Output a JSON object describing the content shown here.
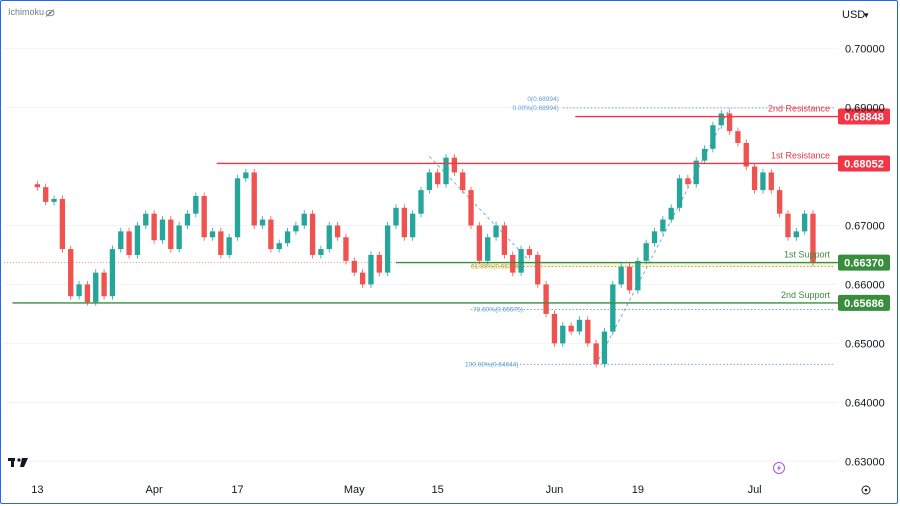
{
  "header": {
    "indicator_label": "Ichimoku",
    "currency_label": "USD",
    "currency_chevron": "▾"
  },
  "colors": {
    "up": "#26a69a",
    "down": "#ef5350",
    "resistance": "#f23645",
    "support": "#388e3c",
    "fib": "#5b9bd5",
    "fib_golden": "#c9a227",
    "axis_text": "#131722",
    "grid": "#f0f3fa"
  },
  "chart_data": {
    "type": "candlestick",
    "y_axis": {
      "ticks": [
        "0.70000",
        "0.69000",
        "0.67000",
        "0.66000",
        "0.65000",
        "0.64000",
        "0.63000"
      ],
      "tick_values": [
        0.7,
        0.69,
        0.67,
        0.66,
        0.65,
        0.64,
        0.63
      ],
      "ylim": [
        0.6275,
        0.7035
      ]
    },
    "x_axis": {
      "ticks": [
        "13",
        "Apr",
        "17",
        "May",
        "15",
        "Jun",
        "19",
        "Jul"
      ],
      "day_index": [
        0,
        14,
        24,
        38,
        48,
        62,
        72,
        86
      ],
      "xlim": [
        -4,
        96
      ]
    },
    "levels": [
      {
        "name": "2nd Resistance",
        "value": "0.68848",
        "price": 0.68848,
        "kind": "resistance",
        "start_day": 64.5
      },
      {
        "name": "1st Resistance",
        "value": "0.68052",
        "price": 0.68052,
        "kind": "resistance",
        "start_day": 21.5
      },
      {
        "name": "1st Support",
        "value": "0.66370",
        "price": 0.6637,
        "kind": "support",
        "start_day": 43.0
      },
      {
        "name": "2nd Support",
        "value": "0.65686",
        "price": 0.65686,
        "kind": "support",
        "start_day": -3.0
      }
    ],
    "fib_levels": [
      {
        "label": "0(0.68994)",
        "price": 0.68994
      },
      {
        "label": "0.00%(0.68994)",
        "price": 0.68994
      },
      {
        "label": "61.80%(0.66336)",
        "price": 0.66336
      },
      {
        "label": "78.60%(0.65575)",
        "price": 0.65575
      },
      {
        "label": "100.00%(0.64644)",
        "price": 0.64644
      }
    ],
    "last_price": 0.6637,
    "candles": [
      [
        0.677,
        0.6765
      ],
      [
        0.6765,
        0.674
      ],
      [
        0.674,
        0.6745
      ],
      [
        0.6745,
        0.666
      ],
      [
        0.666,
        0.658
      ],
      [
        0.658,
        0.66
      ],
      [
        0.66,
        0.657
      ],
      [
        0.657,
        0.662
      ],
      [
        0.662,
        0.658
      ],
      [
        0.658,
        0.666
      ],
      [
        0.666,
        0.669
      ],
      [
        0.669,
        0.665
      ],
      [
        0.665,
        0.67
      ],
      [
        0.67,
        0.672
      ],
      [
        0.672,
        0.6675
      ],
      [
        0.6675,
        0.671
      ],
      [
        0.671,
        0.666
      ],
      [
        0.666,
        0.67
      ],
      [
        0.67,
        0.672
      ],
      [
        0.672,
        0.675
      ],
      [
        0.675,
        0.668
      ],
      [
        0.668,
        0.669
      ],
      [
        0.669,
        0.665
      ],
      [
        0.665,
        0.668
      ],
      [
        0.668,
        0.678
      ],
      [
        0.678,
        0.679
      ],
      [
        0.679,
        0.67
      ],
      [
        0.67,
        0.671
      ],
      [
        0.671,
        0.666
      ],
      [
        0.666,
        0.667
      ],
      [
        0.667,
        0.669
      ],
      [
        0.669,
        0.67
      ],
      [
        0.67,
        0.672
      ],
      [
        0.672,
        0.665
      ],
      [
        0.665,
        0.666
      ],
      [
        0.666,
        0.67
      ],
      [
        0.67,
        0.668
      ],
      [
        0.668,
        0.664
      ],
      [
        0.664,
        0.662
      ],
      [
        0.662,
        0.66
      ],
      [
        0.66,
        0.665
      ],
      [
        0.665,
        0.662
      ],
      [
        0.662,
        0.67
      ],
      [
        0.67,
        0.673
      ],
      [
        0.673,
        0.668
      ],
      [
        0.668,
        0.672
      ],
      [
        0.672,
        0.676
      ],
      [
        0.676,
        0.679
      ],
      [
        0.679,
        0.677
      ],
      [
        0.677,
        0.6815
      ],
      [
        0.6815,
        0.679
      ],
      [
        0.679,
        0.676
      ],
      [
        0.676,
        0.67
      ],
      [
        0.67,
        0.664
      ],
      [
        0.664,
        0.668
      ],
      [
        0.668,
        0.67
      ],
      [
        0.67,
        0.665
      ],
      [
        0.665,
        0.662
      ],
      [
        0.662,
        0.666
      ],
      [
        0.666,
        0.665
      ],
      [
        0.665,
        0.66
      ],
      [
        0.66,
        0.655
      ],
      [
        0.655,
        0.65
      ],
      [
        0.65,
        0.653
      ],
      [
        0.653,
        0.652
      ],
      [
        0.652,
        0.654
      ],
      [
        0.654,
        0.65
      ],
      [
        0.65,
        0.6465
      ],
      [
        0.6465,
        0.652
      ],
      [
        0.652,
        0.66
      ],
      [
        0.66,
        0.663
      ],
      [
        0.663,
        0.659
      ],
      [
        0.659,
        0.664
      ],
      [
        0.664,
        0.667
      ],
      [
        0.667,
        0.669
      ],
      [
        0.669,
        0.671
      ],
      [
        0.671,
        0.673
      ],
      [
        0.673,
        0.678
      ],
      [
        0.678,
        0.677
      ],
      [
        0.677,
        0.681
      ],
      [
        0.681,
        0.683
      ],
      [
        0.683,
        0.687
      ],
      [
        0.687,
        0.689
      ],
      [
        0.689,
        0.686
      ],
      [
        0.686,
        0.684
      ],
      [
        0.684,
        0.68
      ],
      [
        0.68,
        0.676
      ],
      [
        0.676,
        0.679
      ],
      [
        0.679,
        0.676
      ],
      [
        0.676,
        0.672
      ],
      [
        0.672,
        0.668
      ],
      [
        0.668,
        0.669
      ],
      [
        0.669,
        0.672
      ],
      [
        0.672,
        0.6637
      ]
    ]
  }
}
